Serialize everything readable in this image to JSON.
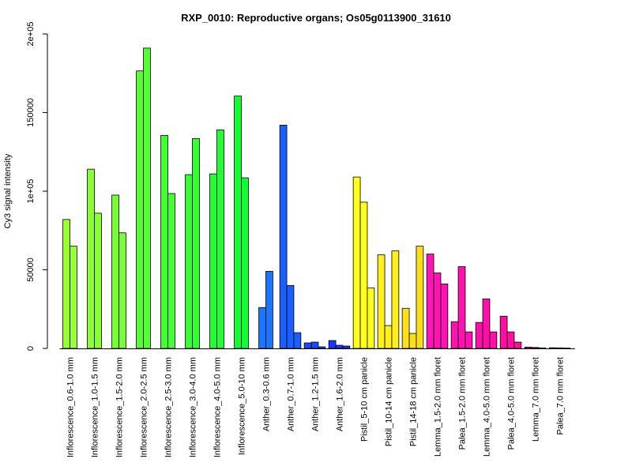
{
  "chart_data": {
    "type": "bar",
    "title": "RXP_0010: Reproductive organs; Os05g0113900_31610",
    "xlabel": "",
    "ylabel": "Cy3 signal intensity",
    "ylim": [
      0,
      200000
    ],
    "y_ticks": [
      {
        "value": 0,
        "label": "0"
      },
      {
        "value": 50000,
        "label": "50000"
      },
      {
        "value": 100000,
        "label": "1e+05"
      },
      {
        "value": 150000,
        "label": "150000"
      },
      {
        "value": 200000,
        "label": "2e+05"
      }
    ],
    "grid": false,
    "legend": "none",
    "groups": [
      {
        "label": "Inflorescence_0.6-1.0 mm",
        "color": "#99ff33",
        "values": [
          82000,
          65000
        ]
      },
      {
        "label": "Inflorescence_1.0-1.5 mm",
        "color": "#88ff33",
        "values": [
          114000,
          86000
        ]
      },
      {
        "label": "Inflorescence_1.5-2.0 mm",
        "color": "#77ff33",
        "values": [
          97500,
          73500
        ]
      },
      {
        "label": "Inflorescence_2.0-2.5 mm",
        "color": "#55ff33",
        "values": [
          176500,
          191000
        ]
      },
      {
        "label": "Inflorescence_2.5-3.0 mm",
        "color": "#44ff33",
        "values": [
          135500,
          98500
        ]
      },
      {
        "label": "Inflorescence_3.0-4.0 mm",
        "color": "#33ff33",
        "values": [
          110500,
          133500
        ]
      },
      {
        "label": "Inflorescence_4.0-5.0 mm",
        "color": "#22ff33",
        "values": [
          111000,
          139000
        ]
      },
      {
        "label": "Inflorescence_5.0-10 mm",
        "color": "#11ff33",
        "values": [
          160500,
          108500
        ]
      },
      {
        "label": "Anther_0.3-0.6 mm",
        "color": "#1a75ff",
        "values": [
          26000,
          49000
        ]
      },
      {
        "label": "Anther_0.7-1.0 mm",
        "color": "#1a5fff",
        "values": [
          142000,
          40000,
          10000
        ]
      },
      {
        "label": "Anther_1.2-1.5 mm",
        "color": "#1a4aff",
        "values": [
          3500,
          4000,
          1000
        ]
      },
      {
        "label": "Anther_1.6-2.0 mm",
        "color": "#1a35ff",
        "values": [
          5000,
          2000,
          1500
        ]
      },
      {
        "label": "Pistil_5-10 cm panicle",
        "color": "#ffff1a",
        "values": [
          109000,
          93000,
          38500
        ]
      },
      {
        "label": "Pistil_10-14 cm panicle",
        "color": "#ffef1a",
        "values": [
          59500,
          14500,
          62000
        ]
      },
      {
        "label": "Pistil_14-18 cm panicle",
        "color": "#ffdf1a",
        "values": [
          25500,
          9500,
          65000
        ]
      },
      {
        "label": "Lemma_1.5-2.0 mm floret",
        "color": "#ff14b4",
        "values": [
          60000,
          48000,
          41000
        ]
      },
      {
        "label": "Palea_1.5-2.0 mm floret",
        "color": "#ff12b0",
        "values": [
          17000,
          52000,
          10500
        ]
      },
      {
        "label": "Lemma_4.0-5.0 mm floret",
        "color": "#ff10a8",
        "values": [
          16500,
          31500,
          10500
        ]
      },
      {
        "label": "Palea_4.0-5.0 mm floret",
        "color": "#ff0ea0",
        "values": [
          20500,
          10500,
          4000
        ]
      },
      {
        "label": "Lemma_7.0 mm floret",
        "color": "#ff0c98",
        "values": [
          800,
          600,
          300
        ]
      },
      {
        "label": "Palea_7.0 mm floret",
        "color": "#ff0a90",
        "values": [
          400,
          300,
          200
        ]
      }
    ]
  }
}
